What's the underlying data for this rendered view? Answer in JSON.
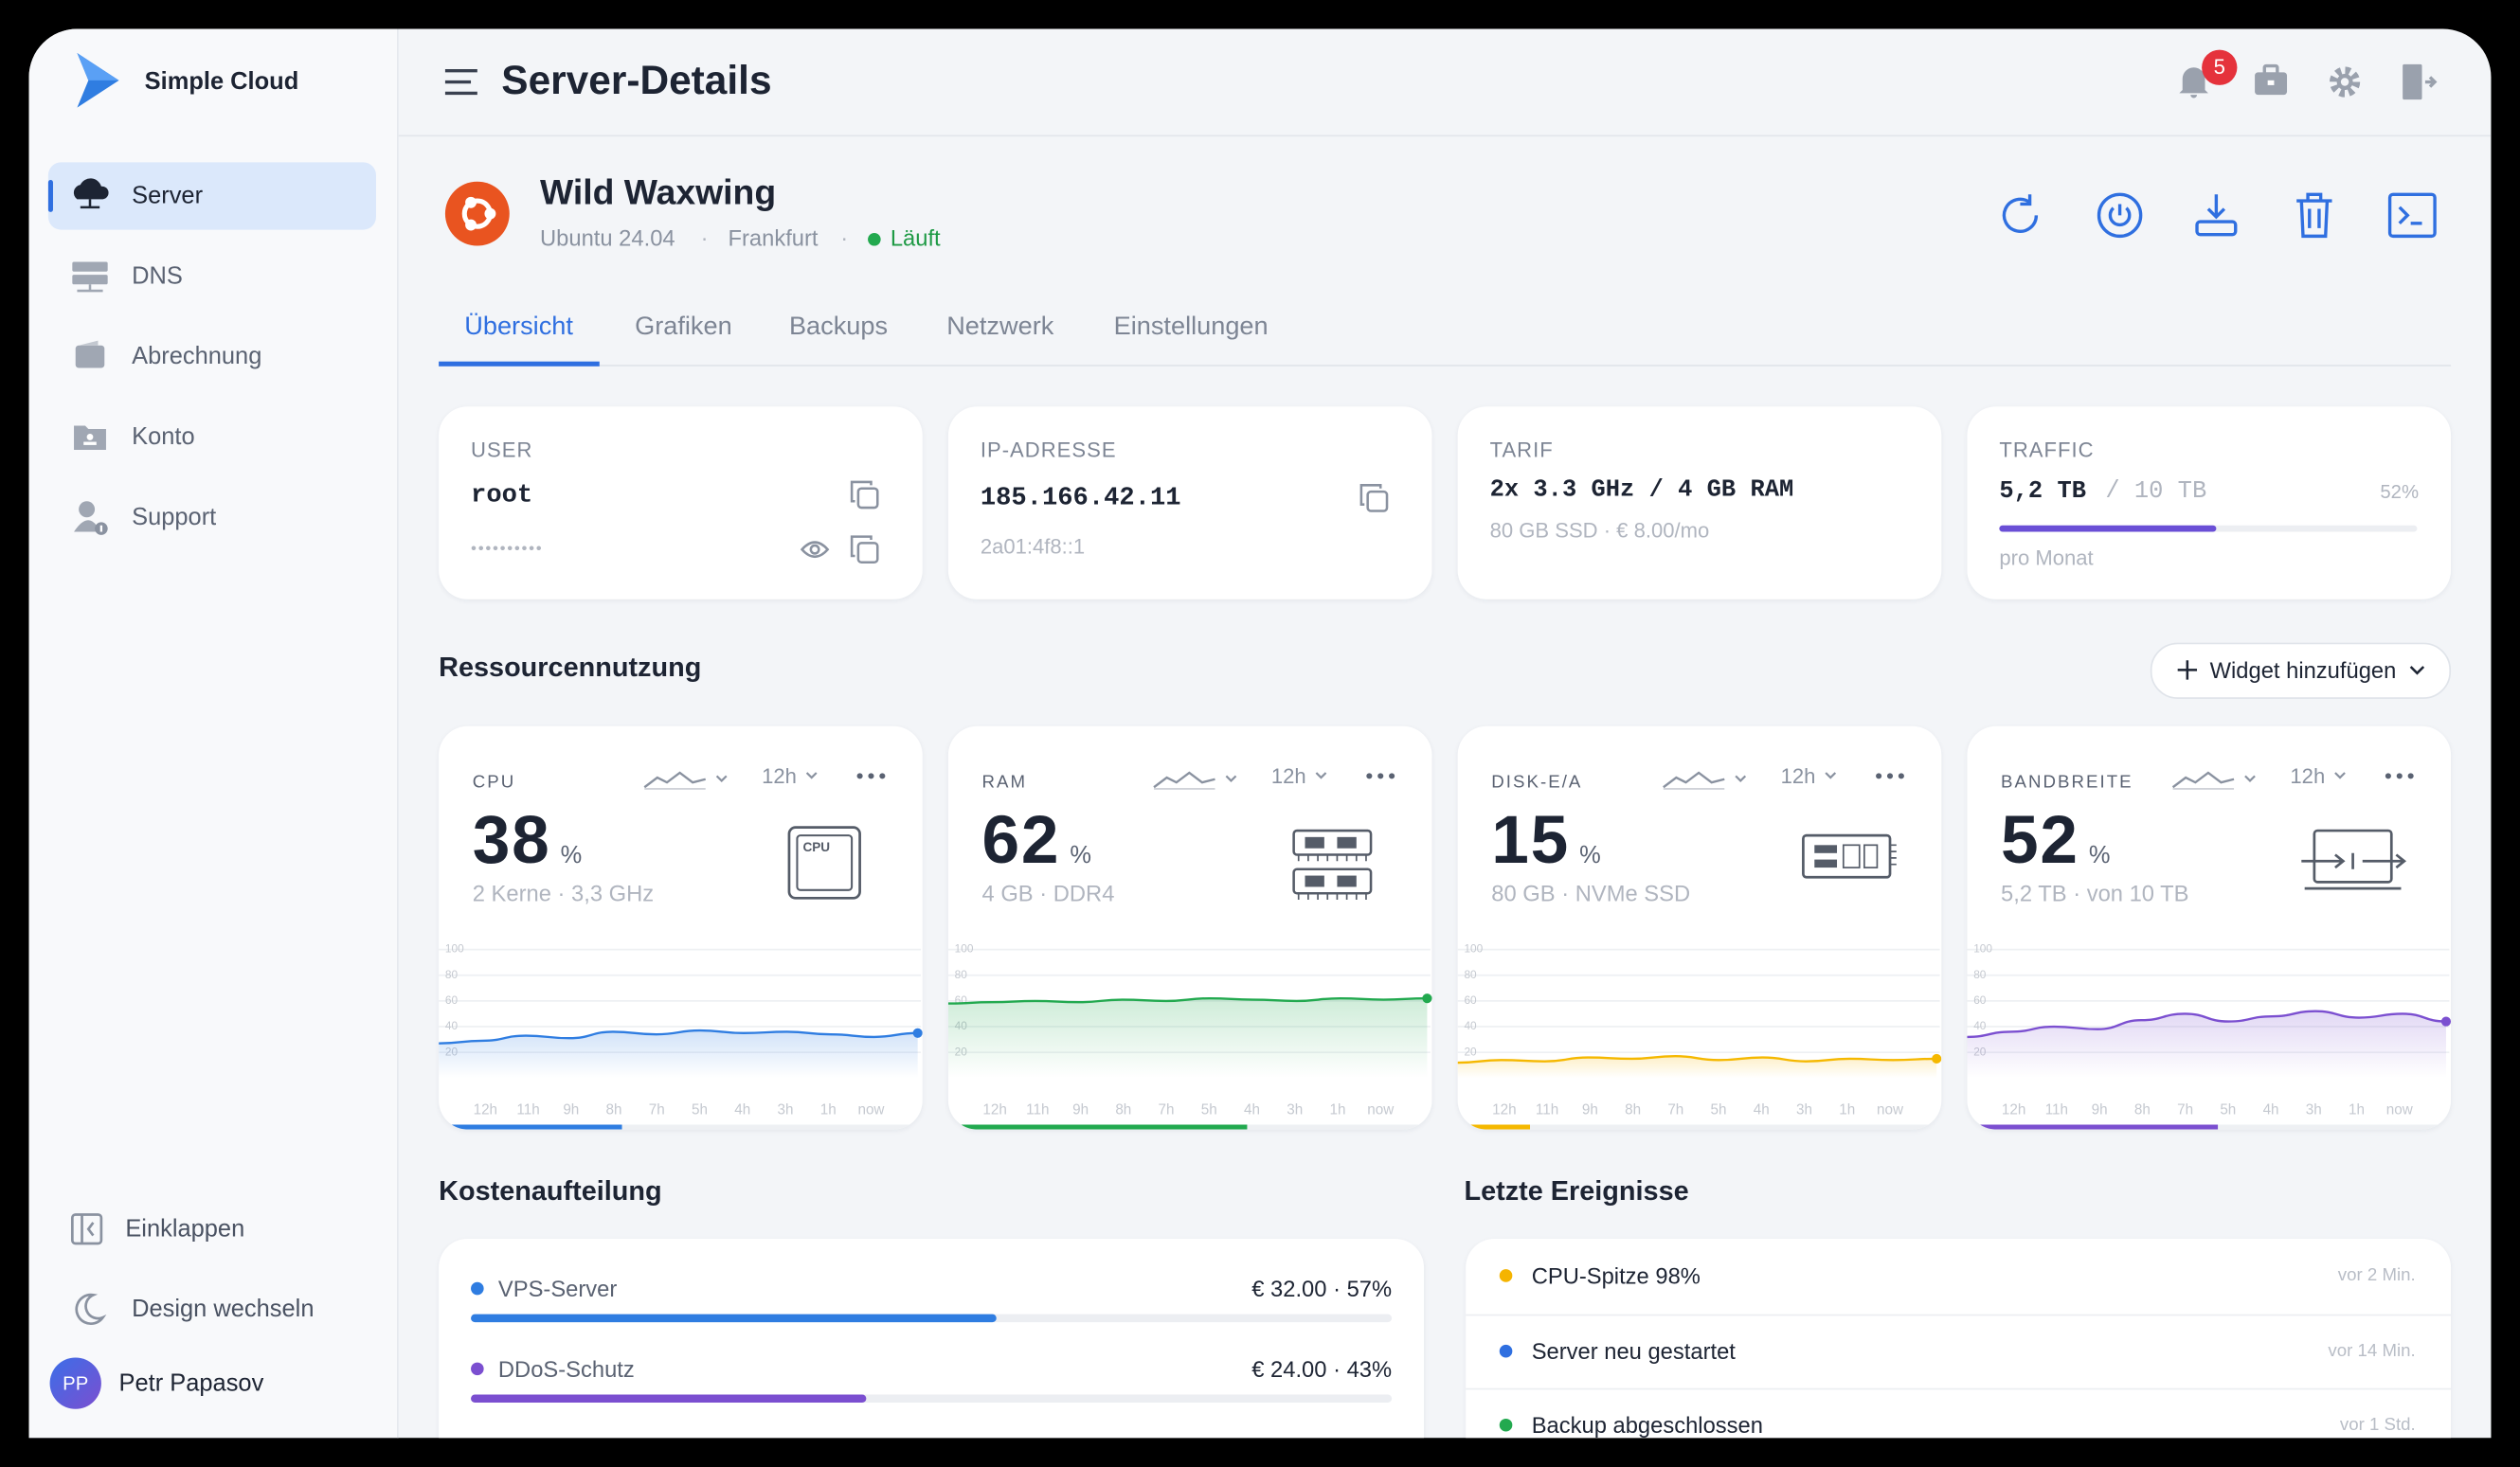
{
  "sidebar": {
    "brand": "Simple Cloud",
    "nav": [
      {
        "label": "Server",
        "active": true
      },
      {
        "label": "DNS",
        "active": false
      },
      {
        "label": "Abrechnung",
        "active": false
      },
      {
        "label": "Konto",
        "active": false
      },
      {
        "label": "Support",
        "active": false
      }
    ],
    "collapse": "Einklappen",
    "theme": "Design wechseln",
    "user": {
      "initials": "PP",
      "name": "Petr Papasov"
    }
  },
  "header": {
    "title": "Server-Details",
    "notifications": 5
  },
  "server": {
    "name": "Wild Waxwing",
    "os": "Ubuntu 24.04",
    "location": "Frankfurt",
    "status": "Läuft"
  },
  "tabs": [
    {
      "label": "Übersicht",
      "active": true
    },
    {
      "label": "Grafiken",
      "active": false
    },
    {
      "label": "Backups",
      "active": false
    },
    {
      "label": "Netzwerk",
      "active": false
    },
    {
      "label": "Einstellungen",
      "active": false
    }
  ],
  "info_cards": {
    "user": {
      "label": "USER",
      "value": "root",
      "password": "••••••••••"
    },
    "ip": {
      "label": "IP-ADRESSE",
      "value": "185.166.42.11",
      "ipv6": "2a01:4f8::1"
    },
    "tarif": {
      "label": "TARIF",
      "value": "2x 3.3 GHz / 4 GB RAM",
      "detail": "80 GB SSD · € 8.00/mo"
    },
    "traffic": {
      "label": "TRAFFIC",
      "value": "5,2 TB",
      "limit": "/ 10 TB",
      "percent": 52,
      "percent_label": "52%",
      "detail": "pro Monat"
    }
  },
  "resources": {
    "title": "Ressourcennutzung",
    "add_widget": "Widget hinzufügen",
    "range": "12h",
    "ylim": [
      0,
      100
    ],
    "yticks": [
      100,
      80,
      60,
      40,
      20
    ],
    "xlabels": [
      "12h",
      "11h",
      "9h",
      "8h",
      "7h",
      "5h",
      "4h",
      "3h",
      "1h",
      "now"
    ],
    "widgets": [
      {
        "label": "CPU",
        "value": 38,
        "unit": "%",
        "detail": "2 Kerne · 3,3 GHz",
        "icon_label": "CPU",
        "color": "#2f7de1",
        "series": [
          27,
          29,
          33,
          31,
          36,
          34,
          37,
          35,
          36,
          34,
          32,
          35
        ]
      },
      {
        "label": "RAM",
        "value": 62,
        "unit": "%",
        "detail": "4 GB · DDR4",
        "color": "#22a94f",
        "series": [
          58,
          59,
          60,
          59,
          61,
          60,
          62,
          61,
          60,
          62,
          61,
          62
        ]
      },
      {
        "label": "DISK-E/A",
        "value": 15,
        "unit": "%",
        "detail": "80 GB · NVMe SSD",
        "color": "#f5b800",
        "series": [
          12,
          14,
          13,
          16,
          15,
          17,
          14,
          16,
          13,
          15,
          14,
          15
        ]
      },
      {
        "label": "BANDBREITE",
        "value": 52,
        "unit": "%",
        "detail": "5,2 TB · von 10 TB",
        "color": "#7b4fd0",
        "series": [
          32,
          36,
          40,
          38,
          45,
          50,
          44,
          48,
          52,
          47,
          50,
          44
        ]
      }
    ]
  },
  "costs": {
    "title": "Kostenaufteilung",
    "items": [
      {
        "name": "VPS-Server",
        "amount": "€ 32.00 · 57%",
        "share": 57,
        "color": "#2f7de1"
      },
      {
        "name": "DDoS-Schutz",
        "amount": "€ 24.00 · 43%",
        "share": 43,
        "color": "#7b4fd0"
      }
    ]
  },
  "events": {
    "title": "Letzte Ereignisse",
    "items": [
      {
        "text": "CPU-Spitze 98%",
        "time": "vor 2 Min.",
        "color": "#f5b400"
      },
      {
        "text": "Server neu gestartet",
        "time": "vor 14 Min.",
        "color": "#2f6fe0"
      },
      {
        "text": "Backup abgeschlossen",
        "time": "vor 1 Std.",
        "color": "#22a94f"
      }
    ]
  }
}
